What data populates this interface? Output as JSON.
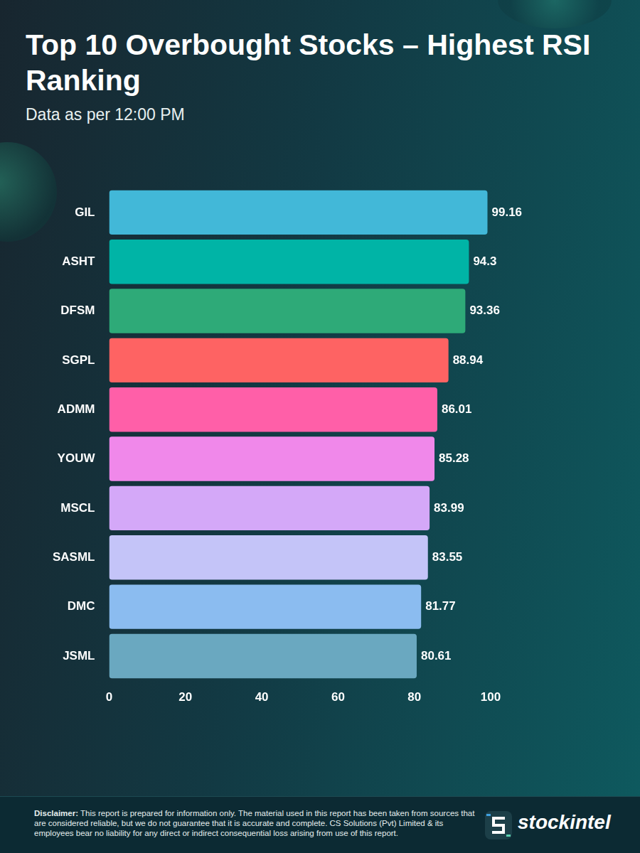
{
  "chart_data": {
    "type": "bar",
    "orientation": "horizontal",
    "title": "Top 10 Overbought Stocks – Highest RSI Ranking",
    "subtitle": "Data as per 12:00 PM",
    "categories": [
      "GIL",
      "ASHT",
      "DFSM",
      "SGPL",
      "ADMM",
      "YOUW",
      "MSCL",
      "SASML",
      "DMC",
      "JSML"
    ],
    "values": [
      99.16,
      94.3,
      93.36,
      88.94,
      86.01,
      85.28,
      83.99,
      83.55,
      81.77,
      80.61
    ],
    "colors": [
      "#42b8d8",
      "#00b4a6",
      "#2eaa78",
      "#fe6363",
      "#ff5fa8",
      "#f088ea",
      "#d4a8f8",
      "#c4c4f8",
      "#8bbcf0",
      "#6aa8c0"
    ],
    "xlim": [
      0,
      100
    ],
    "xticks": [
      0,
      20,
      40,
      60,
      80,
      100
    ],
    "grid": false,
    "data_labels": true
  },
  "footer": {
    "disclaimer_label": "Disclaimer:",
    "disclaimer": "This report is prepared for information only. The material used in this report has been taken from sources that are considered reliable, but we do not guarantee that it is accurate and complete. CS Solutions (Pvt) Limited & its employees bear no liability for any direct or indirect consequential loss arising from use of this report.",
    "brand": "stockintel"
  }
}
